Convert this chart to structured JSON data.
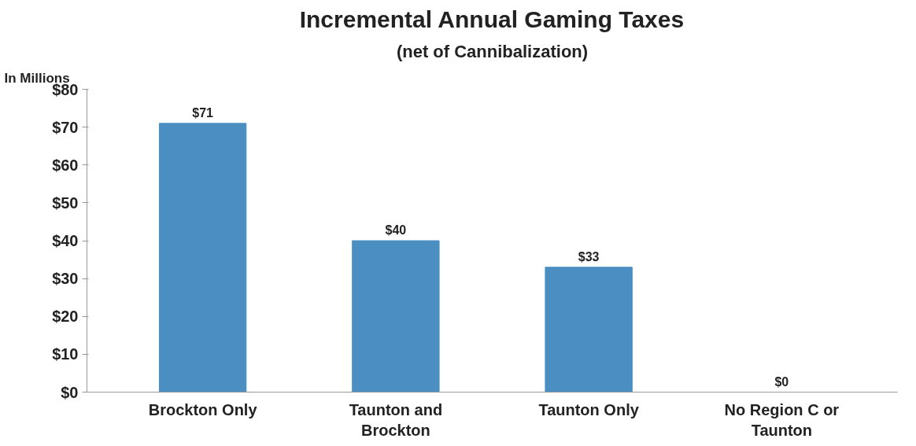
{
  "chart_data": {
    "type": "bar",
    "title": "Incremental Annual Gaming Taxes",
    "subtitle": "(net of Cannibalization)",
    "ylabel": "In Millions",
    "categories": [
      "Brockton Only",
      "Taunton and Brockton",
      "Taunton Only",
      "No Region C or Taunton"
    ],
    "values": [
      71,
      40,
      33,
      0
    ],
    "value_labels": [
      "$71",
      "$40",
      "$33",
      "$0"
    ],
    "color": "#4a8ec2",
    "ylim": [
      0,
      80
    ],
    "yticks": [
      {
        "value": 0,
        "label": "$0"
      },
      {
        "value": 10,
        "label": "$10"
      },
      {
        "value": 20,
        "label": "$20"
      },
      {
        "value": 30,
        "label": "$30"
      },
      {
        "value": 40,
        "label": "$40"
      },
      {
        "value": 50,
        "label": "$50"
      },
      {
        "value": 60,
        "label": "$60"
      },
      {
        "value": 70,
        "label": "$70"
      },
      {
        "value": 80,
        "label": "$80"
      }
    ],
    "grid": false
  }
}
